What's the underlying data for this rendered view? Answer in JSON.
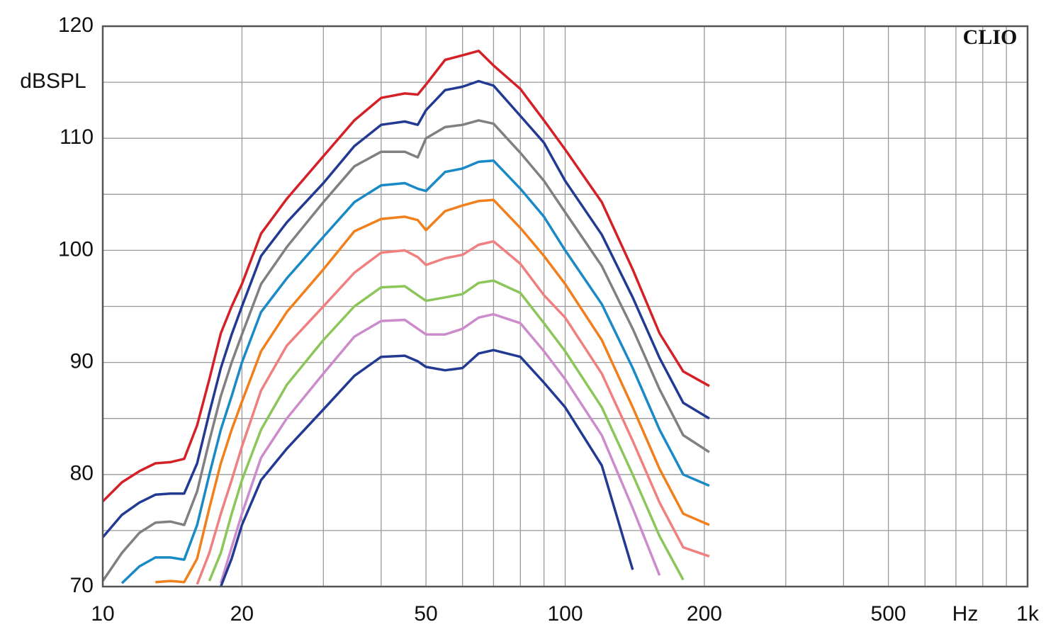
{
  "chart_data": {
    "type": "line",
    "y_label": "dBSPL",
    "x_label": "Hz",
    "annotation": "CLIO",
    "log_x": true,
    "grid": true,
    "xlim": [
      10,
      1000
    ],
    "ylim": [
      70,
      120
    ],
    "xticks": [
      10,
      20,
      50,
      100,
      200,
      500,
      {
        "value": 1000,
        "label": "1k"
      }
    ],
    "x_minor_ticks": [
      30,
      40,
      60,
      70,
      80,
      90,
      300,
      400,
      600,
      700,
      800,
      900
    ],
    "yticks": [
      70,
      80,
      90,
      100,
      110,
      120
    ],
    "y_minor_ticks": [
      75,
      85,
      95,
      105,
      115
    ],
    "x": [
      10,
      11,
      12,
      13,
      14,
      15,
      16,
      17,
      18,
      19,
      20,
      22,
      25,
      30,
      35,
      40,
      45,
      48,
      50,
      55,
      60,
      65,
      70,
      80,
      90,
      100,
      120,
      140,
      160,
      180,
      205
    ],
    "series": [
      {
        "color": "#d42027",
        "values": [
          77.6,
          79.3,
          80.3,
          81.0,
          81.1,
          81.4,
          84.4,
          88.5,
          92.6,
          95,
          97,
          101.5,
          104.6,
          108.4,
          111.6,
          113.6,
          114.0,
          113.9,
          114.8,
          117,
          117.4,
          117.8,
          116.5,
          114.4,
          111.6,
          109,
          104.3,
          98.3,
          92.6,
          89.2,
          87.9
        ]
      },
      {
        "color": "#233a93",
        "values": [
          74.4,
          76.4,
          77.5,
          78.2,
          78.3,
          78.3,
          81,
          85.5,
          89.5,
          92.5,
          95,
          99.5,
          102.5,
          106,
          109.3,
          111.2,
          111.5,
          111.2,
          112.5,
          114.3,
          114.6,
          115.1,
          114.7,
          112,
          109.6,
          106.2,
          101.4,
          95.8,
          90.4,
          86.4,
          85
        ]
      },
      {
        "color": "#808080",
        "values": [
          70.5,
          73,
          74.8,
          75.7,
          75.8,
          75.5,
          78.5,
          83,
          87,
          90,
          92.5,
          97,
          100.3,
          104.3,
          107.5,
          108.8,
          108.8,
          108.3,
          110,
          111,
          111.2,
          111.6,
          111.3,
          108.7,
          106.2,
          103.4,
          98.6,
          93,
          87.6,
          83.5,
          82
        ]
      },
      {
        "color": "#1a8ac7",
        "values": [
          null,
          70.3,
          71.8,
          72.6,
          72.6,
          72.4,
          75.5,
          80,
          84,
          87,
          90,
          94.5,
          97.5,
          101.2,
          104.3,
          105.8,
          106,
          105.5,
          105.3,
          107,
          107.3,
          107.9,
          108,
          105.5,
          103,
          100,
          95.2,
          89.5,
          84,
          80,
          79
        ]
      },
      {
        "color": "#f07f1c",
        "values": [
          null,
          null,
          null,
          70.4,
          70.5,
          70.4,
          72.5,
          77,
          81,
          84,
          86.5,
          91,
          94.5,
          98.3,
          101.7,
          102.8,
          103,
          102.7,
          101.8,
          103.5,
          104,
          104.4,
          104.5,
          102,
          99.5,
          97,
          92,
          86,
          80.5,
          76.5,
          75.5
        ]
      },
      {
        "color": "#f08080",
        "values": [
          null,
          null,
          null,
          null,
          null,
          null,
          70.2,
          73,
          76.5,
          79.5,
          82.5,
          87.5,
          91.5,
          95,
          98,
          99.8,
          100,
          99.4,
          98.7,
          99.3,
          99.6,
          100.5,
          100.8,
          98.8,
          96,
          94,
          89,
          83,
          77.5,
          73.5,
          72.7
        ]
      },
      {
        "color": "#8cc65a",
        "values": [
          null,
          null,
          null,
          null,
          null,
          null,
          null,
          70.5,
          73,
          76.5,
          79.5,
          84,
          88,
          92,
          95,
          96.7,
          96.8,
          96,
          95.5,
          95.8,
          96.1,
          97.1,
          97.3,
          96.2,
          93.5,
          91,
          86,
          80,
          74.5,
          70.6,
          null
        ]
      },
      {
        "color": "#cc8ccc",
        "values": [
          null,
          null,
          null,
          null,
          null,
          null,
          null,
          null,
          70.3,
          73.5,
          76.5,
          81.5,
          85,
          89,
          92.3,
          93.7,
          93.8,
          93,
          92.5,
          92.5,
          93,
          94,
          94.3,
          93.5,
          91,
          88.5,
          83.5,
          77,
          71,
          null,
          null
        ]
      },
      {
        "color": "#233a93",
        "values": [
          null,
          null,
          null,
          null,
          null,
          null,
          null,
          null,
          70,
          72.5,
          75.5,
          79.5,
          82.3,
          85.8,
          88.8,
          90.5,
          90.6,
          90.1,
          89.6,
          89.3,
          89.5,
          90.8,
          91.1,
          90.5,
          88.2,
          86,
          80.8,
          71.5,
          null,
          null,
          null
        ]
      }
    ]
  }
}
